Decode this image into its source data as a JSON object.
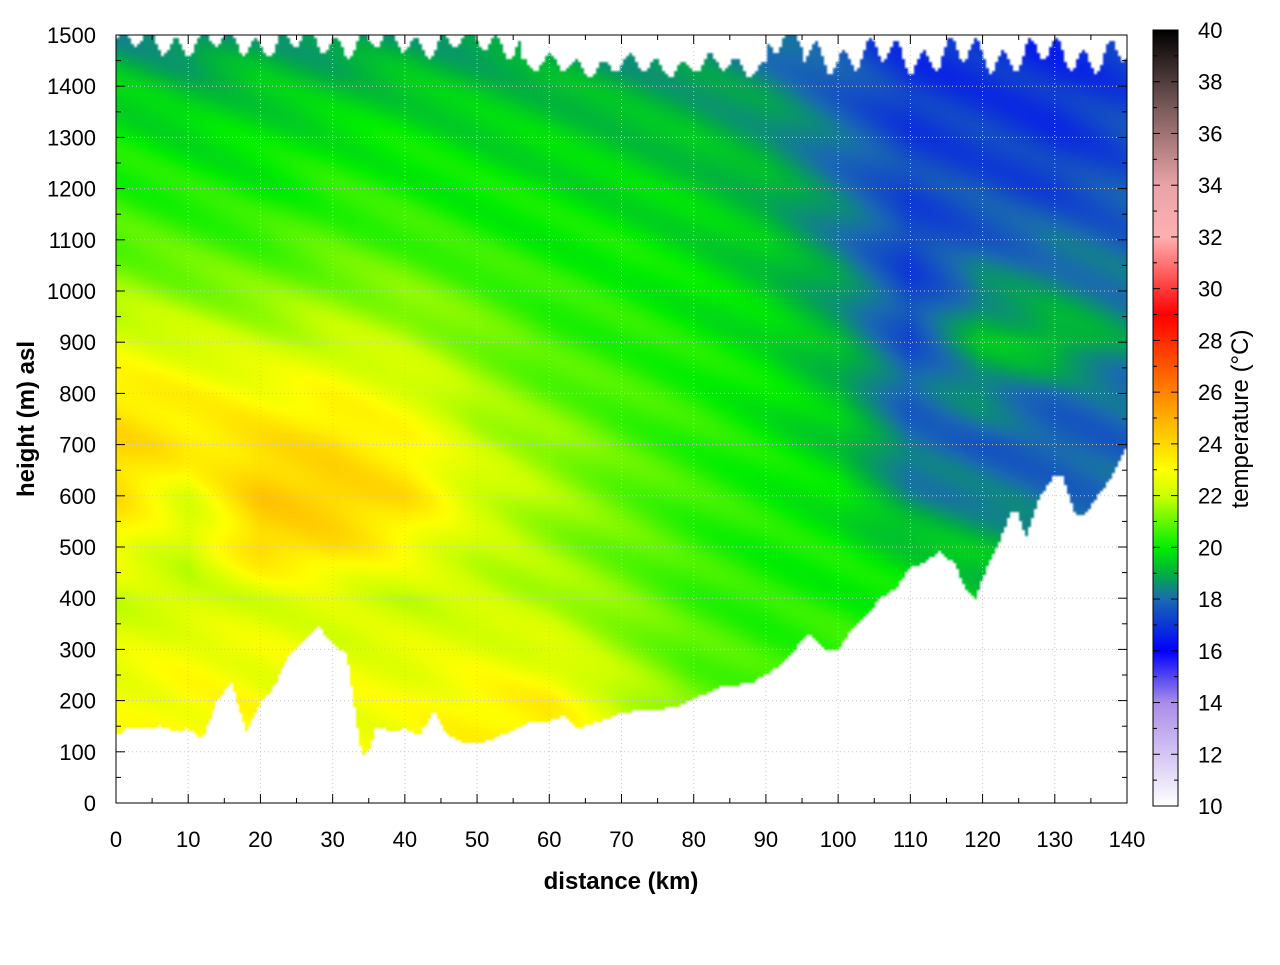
{
  "chart_data": {
    "type": "heatmap",
    "title": "",
    "xlabel": "distance (km)",
    "ylabel": "height (m) asl",
    "colorbar_label": "temperature (°C)",
    "xlim": [
      0,
      140
    ],
    "ylim": [
      0,
      1500
    ],
    "clim": [
      10,
      40
    ],
    "x_ticks": [
      "0",
      "10",
      "20",
      "30",
      "40",
      "50",
      "60",
      "70",
      "80",
      "90",
      "100",
      "110",
      "120",
      "130",
      "140"
    ],
    "y_ticks": [
      "0",
      "100",
      "200",
      "300",
      "400",
      "500",
      "600",
      "700",
      "800",
      "900",
      "1000",
      "1100",
      "1200",
      "1300",
      "1400",
      "1500"
    ],
    "colorbar_ticks": [
      "10",
      "12",
      "14",
      "16",
      "18",
      "20",
      "22",
      "24",
      "26",
      "28",
      "30",
      "32",
      "34",
      "36",
      "38",
      "40"
    ],
    "grid": true,
    "colormap": [
      {
        "value": 10,
        "color": "#ffffff"
      },
      {
        "value": 14,
        "color": "#a98ce8"
      },
      {
        "value": 16,
        "color": "#0000ff"
      },
      {
        "value": 18,
        "color": "#1a6ab0"
      },
      {
        "value": 19,
        "color": "#00b040"
      },
      {
        "value": 20,
        "color": "#00ee00"
      },
      {
        "value": 22,
        "color": "#ccff00"
      },
      {
        "value": 23,
        "color": "#ffff00"
      },
      {
        "value": 25,
        "color": "#ffb000"
      },
      {
        "value": 27,
        "color": "#ff5500"
      },
      {
        "value": 29,
        "color": "#ff0000"
      },
      {
        "value": 32,
        "color": "#ffb0b0"
      },
      {
        "value": 34,
        "color": "#e9a3a8"
      },
      {
        "value": 37,
        "color": "#7a5a5a"
      },
      {
        "value": 40,
        "color": "#000000"
      }
    ],
    "terrain_height_m": {
      "x_km": [
        0,
        2,
        4,
        6,
        8,
        10,
        12,
        14,
        16,
        18,
        20,
        22,
        24,
        26,
        28,
        30,
        32,
        34,
        35,
        36,
        38,
        40,
        42,
        44,
        46,
        48,
        50,
        52,
        54,
        56,
        58,
        60,
        62,
        64,
        66,
        68,
        70,
        72,
        74,
        76,
        78,
        80,
        82,
        84,
        86,
        88,
        90,
        92,
        94,
        96,
        98,
        100,
        102,
        104,
        106,
        108,
        110,
        112,
        114,
        116,
        118,
        119,
        120,
        122,
        124,
        125,
        126,
        128,
        130,
        131,
        132,
        133,
        134,
        136,
        138,
        140
      ],
      "height": [
        130,
        150,
        145,
        150,
        140,
        145,
        125,
        200,
        235,
        140,
        195,
        230,
        290,
        315,
        345,
        310,
        290,
        95,
        100,
        150,
        140,
        145,
        130,
        180,
        130,
        120,
        115,
        125,
        135,
        150,
        160,
        160,
        170,
        145,
        155,
        165,
        175,
        180,
        180,
        185,
        190,
        205,
        215,
        230,
        230,
        235,
        250,
        270,
        300,
        330,
        300,
        300,
        340,
        370,
        400,
        420,
        460,
        470,
        490,
        470,
        410,
        400,
        440,
        500,
        570,
        565,
        520,
        600,
        640,
        640,
        600,
        560,
        560,
        600,
        640,
        700
      ]
    },
    "field_samples_degC": {
      "x_km": [
        0,
        10,
        20,
        30,
        40,
        50,
        60,
        70,
        80,
        90,
        100,
        110,
        120,
        130,
        140
      ],
      "height_m": [
        100,
        200,
        300,
        400,
        500,
        600,
        700,
        800,
        900,
        1000,
        1100,
        1200,
        1300,
        1400,
        1500
      ],
      "values": [
        [
          null,
          null,
          null,
          null,
          null,
          23.2,
          23.5,
          22.5,
          22.0,
          null,
          null,
          null,
          null,
          null,
          null
        ],
        [
          22.8,
          23.0,
          null,
          null,
          22.8,
          23.2,
          23.3,
          22.0,
          21.0,
          null,
          null,
          null,
          null,
          null,
          null
        ],
        [
          22.5,
          22.8,
          22.7,
          null,
          22.5,
          22.5,
          22.3,
          21.5,
          20.8,
          20.5,
          20.5,
          null,
          null,
          null,
          null
        ],
        [
          22.0,
          22.0,
          22.2,
          22.3,
          22.0,
          22.0,
          21.8,
          21.2,
          20.6,
          20.3,
          20.2,
          20.0,
          null,
          null,
          null
        ],
        [
          23.0,
          22.0,
          24.0,
          23.8,
          23.0,
          22.0,
          21.5,
          21.0,
          20.5,
          20.2,
          20.0,
          19.5,
          19.2,
          null,
          null
        ],
        [
          23.8,
          22.5,
          24.3,
          24.2,
          23.8,
          22.3,
          21.6,
          21.0,
          20.5,
          20.2,
          19.8,
          18.5,
          18.2,
          18.0,
          null
        ],
        [
          24.0,
          23.5,
          23.8,
          23.8,
          23.2,
          22.0,
          21.5,
          20.8,
          20.4,
          20.0,
          19.5,
          18.0,
          17.8,
          17.7,
          17.9
        ],
        [
          23.5,
          23.2,
          23.0,
          23.0,
          22.5,
          21.6,
          21.0,
          20.6,
          20.3,
          19.9,
          19.3,
          17.8,
          18.5,
          18.0,
          18.0
        ],
        [
          22.5,
          22.2,
          22.0,
          22.0,
          21.8,
          21.2,
          20.6,
          20.4,
          20.1,
          19.8,
          19.0,
          17.5,
          19.2,
          19.5,
          18.6
        ],
        [
          21.5,
          21.3,
          21.2,
          21.3,
          21.2,
          20.8,
          20.4,
          20.2,
          19.9,
          19.5,
          18.7,
          17.3,
          18.5,
          18.5,
          18.2
        ],
        [
          20.8,
          20.7,
          20.6,
          20.7,
          20.6,
          20.3,
          20.1,
          20.0,
          19.7,
          19.3,
          18.4,
          17.2,
          17.8,
          18.0,
          17.8
        ],
        [
          20.4,
          20.2,
          20.1,
          20.3,
          20.2,
          20.0,
          19.9,
          19.7,
          19.5,
          19.1,
          18.2,
          17.4,
          17.5,
          17.3,
          17.6
        ],
        [
          20.0,
          19.8,
          19.8,
          19.9,
          19.9,
          19.7,
          19.6,
          19.4,
          19.2,
          18.8,
          18.0,
          17.2,
          17.2,
          17.0,
          17.4
        ],
        [
          19.5,
          19.2,
          19.4,
          19.3,
          19.4,
          19.3,
          19.2,
          19.0,
          18.8,
          18.5,
          17.8,
          17.0,
          17.0,
          16.9,
          17.2
        ],
        [
          18.5,
          18.3,
          18.8,
          18.5,
          18.8,
          18.6,
          18.5,
          18.4,
          18.3,
          18.0,
          17.5,
          16.9,
          16.8,
          16.7,
          17.0
        ]
      ]
    }
  }
}
